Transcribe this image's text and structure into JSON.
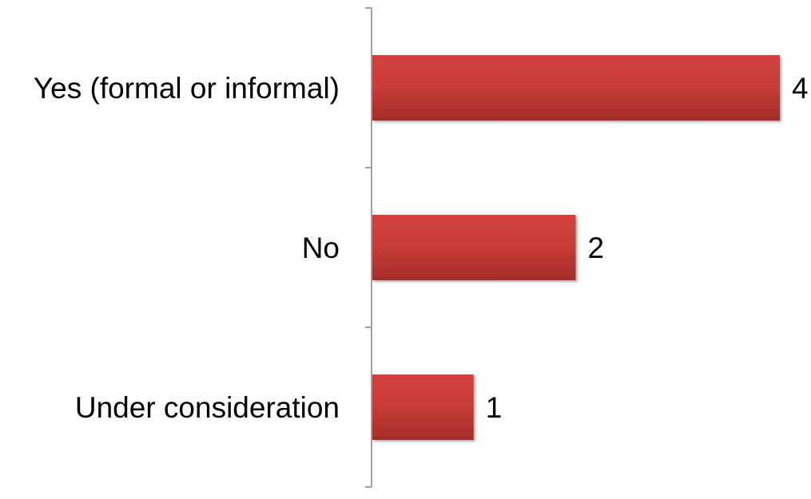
{
  "chart_data": {
    "type": "bar",
    "orientation": "horizontal",
    "categories": [
      "Yes (formal or informal)",
      "No",
      "Under consideration"
    ],
    "values": [
      4,
      2,
      1
    ],
    "data_labels": [
      "4",
      "2",
      "1"
    ],
    "xlim": [
      0,
      4
    ],
    "grid": false,
    "legend": "none",
    "colors": {
      "bar_top": "#d0423d",
      "bar_bottom": "#a32e2b",
      "axis": "#808080"
    }
  }
}
